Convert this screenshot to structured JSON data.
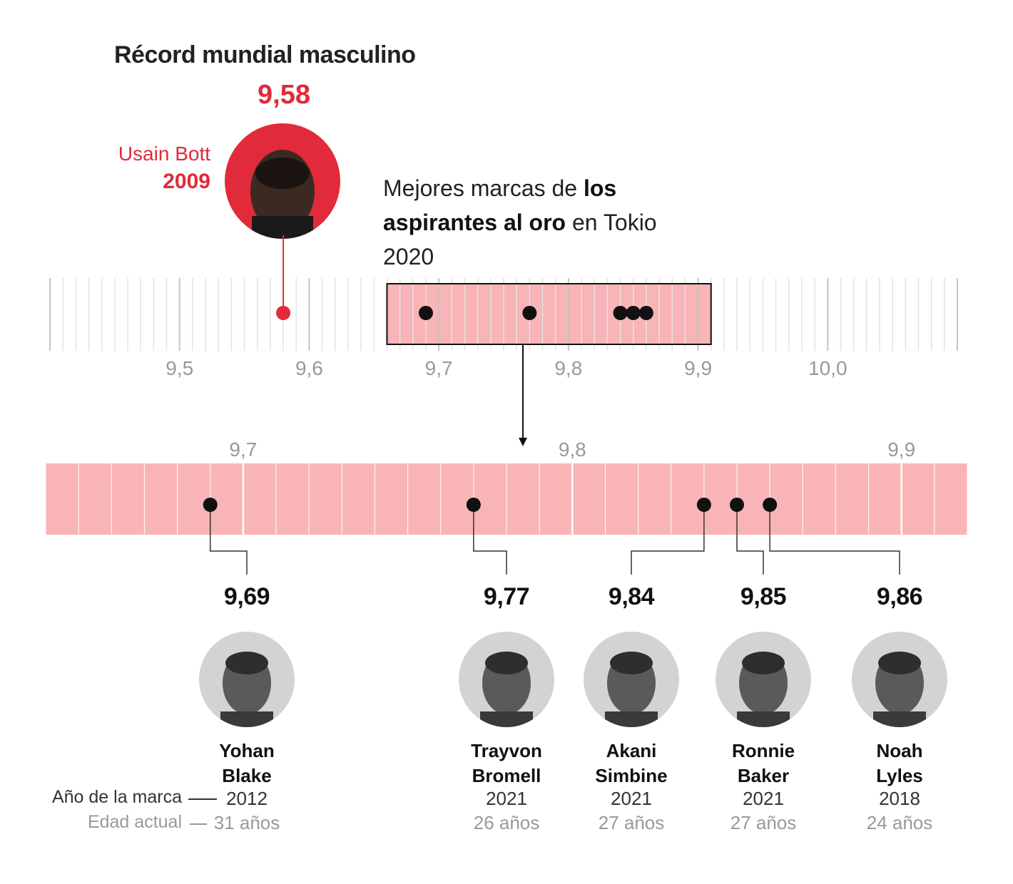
{
  "title": "Récord mundial masculino",
  "record": {
    "value": "9,58",
    "athlete": "Usain Bott",
    "year": "2009",
    "time": 9.58
  },
  "subtitle": {
    "part1": "Mejores marcas de ",
    "bold": "los aspirantes al oro",
    "part2": " en Tokio 2020"
  },
  "legend": {
    "year_label": "Año de la marca",
    "age_label": "Edad actual"
  },
  "colors": {
    "accent": "#e12b3a",
    "band": "#f8b4b7",
    "dot": "#111111",
    "grid": "#d6d6d6",
    "tick_label": "#999999"
  },
  "chart_data": [
    {
      "type": "scatter",
      "xlim": [
        9.4,
        10.1
      ],
      "x_ticks": [
        "9,5",
        "9,6",
        "9,7",
        "9,8",
        "9,9",
        "10,0"
      ],
      "x_tick_values": [
        9.5,
        9.6,
        9.7,
        9.8,
        9.9,
        10.0
      ],
      "highlight_range": [
        9.66,
        9.91
      ],
      "points": [
        9.58,
        9.69,
        9.77,
        9.84,
        9.85,
        9.86
      ]
    },
    {
      "type": "scatter",
      "xlim": [
        9.64,
        9.92
      ],
      "x_ticks": [
        "9,7",
        "9,8",
        "9,9"
      ],
      "x_tick_values": [
        9.7,
        9.8,
        9.9
      ],
      "points": [
        {
          "x": 9.69,
          "label": "9,69",
          "name": [
            "Yohan",
            "Blake"
          ],
          "year": "2012",
          "age": "31 años"
        },
        {
          "x": 9.77,
          "label": "9,77",
          "name": [
            "Trayvon",
            "Bromell"
          ],
          "year": "2021",
          "age": "26 años"
        },
        {
          "x": 9.84,
          "label": "9,84",
          "name": [
            "Akani",
            "Simbine"
          ],
          "year": "2021",
          "age": "27 años"
        },
        {
          "x": 9.85,
          "label": "9,85",
          "name": [
            "Ronnie",
            "Baker"
          ],
          "year": "2021",
          "age": "27 años"
        },
        {
          "x": 9.86,
          "label": "9,86",
          "name": [
            "Noah",
            "Lyles"
          ],
          "year": "2018",
          "age": "24 años"
        }
      ]
    }
  ]
}
